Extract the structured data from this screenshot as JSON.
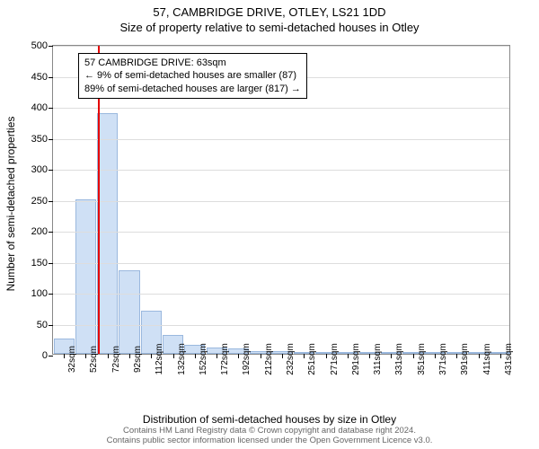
{
  "title": "57, CAMBRIDGE DRIVE, OTLEY, LS21 1DD",
  "subtitle": "Size of property relative to semi-detached houses in Otley",
  "y_axis_label": "Number of semi-detached properties",
  "x_axis_label": "Distribution of semi-detached houses by size in Otley",
  "chart": {
    "type": "bar",
    "ylim": [
      0,
      500
    ],
    "ytick_step": 50,
    "background_color": "#ffffff",
    "grid_color": "#dddddd",
    "bar_fill": "#cfe0f5",
    "bar_stroke": "#9ab8de",
    "bar_width_ratio": 0.95,
    "categories": [
      "32sqm",
      "52sqm",
      "72sqm",
      "92sqm",
      "112sqm",
      "132sqm",
      "152sqm",
      "172sqm",
      "192sqm",
      "212sqm",
      "232sqm",
      "251sqm",
      "271sqm",
      "291sqm",
      "311sqm",
      "331sqm",
      "351sqm",
      "371sqm",
      "391sqm",
      "411sqm",
      "431sqm"
    ],
    "values": [
      25,
      250,
      388,
      135,
      70,
      30,
      15,
      10,
      8,
      5,
      5,
      3,
      3,
      2,
      2,
      2,
      2,
      1,
      1,
      1,
      1
    ],
    "marker": {
      "color": "#e40000",
      "position_index": 1.55
    }
  },
  "info_box": {
    "line1": "57 CAMBRIDGE DRIVE: 63sqm",
    "line2": "← 9% of semi-detached houses are smaller (87)",
    "line3": "89% of semi-detached houses are larger (817) →"
  },
  "footer": {
    "line1": "Contains HM Land Registry data © Crown copyright and database right 2024.",
    "line2": "Contains public sector information licensed under the Open Government Licence v3.0."
  }
}
